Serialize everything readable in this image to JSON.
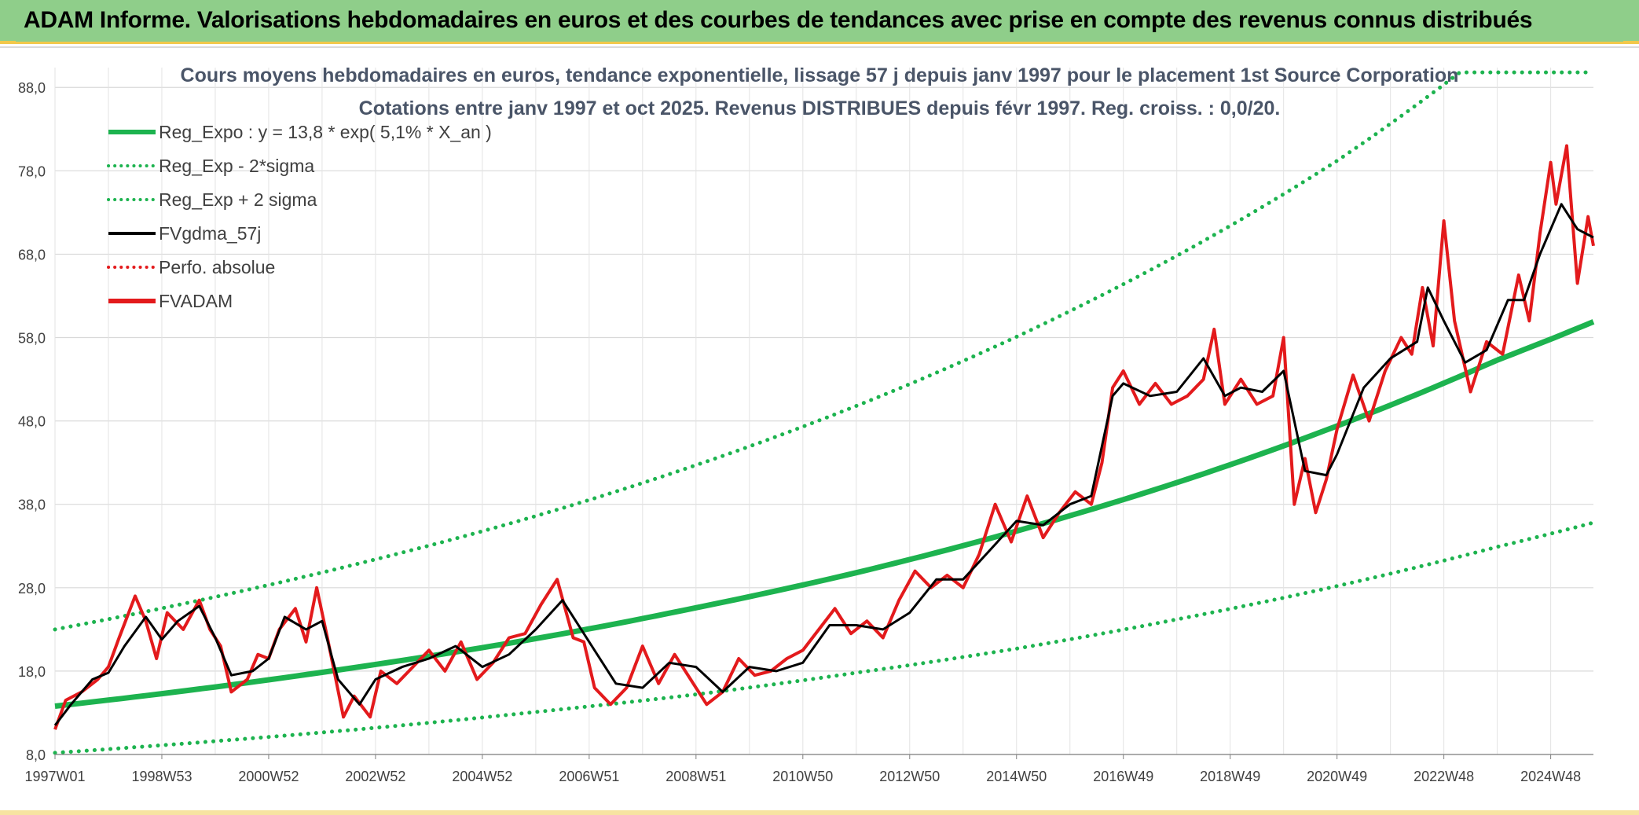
{
  "banner": {
    "title": "ADAM Informe. Valorisations hebdomadaires en euros et des courbes de tendances avec prise en compte des revenus connus distribués"
  },
  "chart_data": {
    "type": "line",
    "title": "Cours moyens hebdomadaires en euros, tendance exponentielle, lissage 57 j depuis janv 1997 pour le placement 1st Source Corporation",
    "subtitle": "Cotations entre janv 1997 et oct 2025. Revenus DISTRIBUES depuis févr 1997. Reg. croiss. : 0,0/20.",
    "xlabel": "",
    "ylabel": "",
    "ylim": [
      8,
      90
    ],
    "y_ticks": [
      "8,0",
      "18,0",
      "28,0",
      "38,0",
      "48,0",
      "58,0",
      "68,0",
      "78,0",
      "88,0"
    ],
    "y_tick_values": [
      8,
      18,
      28,
      38,
      48,
      58,
      68,
      78,
      88
    ],
    "x_range": [
      1997.0,
      2025.8
    ],
    "x_ticks": [
      "1997W01",
      "1998W53",
      "2000W52",
      "2002W52",
      "2004W52",
      "2006W51",
      "2008W51",
      "2010W50",
      "2012W50",
      "2014W50",
      "2016W49",
      "2018W49",
      "2020W49",
      "2022W48",
      "2024W48"
    ],
    "x_tick_years": [
      1997.0,
      1999.0,
      2001.0,
      2003.0,
      2005.0,
      2007.0,
      2009.0,
      2011.0,
      2013.0,
      2015.0,
      2017.0,
      2019.0,
      2021.0,
      2023.0,
      2025.0
    ],
    "grid": true,
    "legend_position": "top-left",
    "legend": [
      {
        "label": "Reg_Expo : y = 13,8 * exp( 5,1% *  X_an )",
        "color": "#1db34f",
        "style": "solid-thick"
      },
      {
        "label": "Reg_Exp - 2*sigma",
        "color": "#1db34f",
        "style": "dotted"
      },
      {
        "label": "Reg_Exp + 2 sigma",
        "color": "#1db34f",
        "style": "dotted"
      },
      {
        "label": "FVgdma_57j",
        "color": "#000000",
        "style": "solid"
      },
      {
        "label": "Perfo. absolue",
        "color": "#e31a1c",
        "style": "dotted"
      },
      {
        "label": "FVADAM",
        "color": "#e31a1c",
        "style": "solid-thick"
      }
    ],
    "series": [
      {
        "name": "Reg_Expo : y = 13,8 * exp( 5,1% *  X_an )",
        "color": "#1db34f",
        "x": [
          1997.0,
          2000.0,
          2003.0,
          2006.0,
          2009.0,
          2012.0,
          2015.0,
          2018.0,
          2021.0,
          2024.0,
          2025.8
        ],
        "values": [
          13.8,
          16.1,
          18.8,
          21.9,
          25.6,
          29.8,
          34.8,
          40.6,
          47.4,
          55.3,
          59.9
        ]
      },
      {
        "name": "Reg_Exp - 2*sigma",
        "color": "#1db34f",
        "x": [
          1997.0,
          2000.0,
          2003.0,
          2006.0,
          2009.0,
          2012.0,
          2015.0,
          2018.0,
          2021.0,
          2024.0,
          2025.8
        ],
        "values": [
          8.2,
          9.6,
          11.2,
          13.1,
          15.2,
          17.8,
          20.7,
          24.2,
          28.2,
          32.9,
          35.8
        ]
      },
      {
        "name": "Reg_Exp + 2 sigma",
        "color": "#1db34f",
        "x": [
          1997.0,
          2000.0,
          2003.0,
          2006.0,
          2009.0,
          2012.0,
          2015.0,
          2018.0,
          2021.0,
          2023.3,
          2025.8
        ],
        "values": [
          23.0,
          26.9,
          31.4,
          36.6,
          42.7,
          49.8,
          58.1,
          67.8,
          79.2,
          89.8,
          89.8
        ]
      },
      {
        "name": "FVgdma_57j",
        "color": "#000000",
        "x": [
          1997.0,
          1997.3,
          1997.7,
          1998.0,
          1998.3,
          1998.7,
          1999.0,
          1999.3,
          1999.7,
          2000.0,
          2000.3,
          2000.7,
          2001.0,
          2001.3,
          2001.7,
          2002.0,
          2002.3,
          2002.7,
          2003.0,
          2003.5,
          2004.0,
          2004.5,
          2005.0,
          2005.5,
          2006.0,
          2006.5,
          2007.0,
          2007.5,
          2008.0,
          2008.5,
          2009.0,
          2009.5,
          2010.0,
          2010.5,
          2011.0,
          2011.5,
          2012.0,
          2012.5,
          2013.0,
          2013.5,
          2014.0,
          2014.5,
          2015.0,
          2015.5,
          2016.0,
          2016.4,
          2016.8,
          2017.0,
          2017.5,
          2018.0,
          2018.5,
          2018.9,
          2019.2,
          2019.6,
          2020.0,
          2020.4,
          2020.8,
          2021.0,
          2021.5,
          2022.0,
          2022.5,
          2022.7,
          2023.0,
          2023.4,
          2023.8,
          2024.2,
          2024.5,
          2024.8,
          2025.2,
          2025.5,
          2025.8
        ],
        "values": [
          11.5,
          14.0,
          17.0,
          17.8,
          21.0,
          24.5,
          21.8,
          24.0,
          25.8,
          22.0,
          17.5,
          18.0,
          19.5,
          24.5,
          23.0,
          24.0,
          17.0,
          14.0,
          17.0,
          18.5,
          19.5,
          21.0,
          18.5,
          20.0,
          23.0,
          26.5,
          21.5,
          16.5,
          16.0,
          19.0,
          18.5,
          15.5,
          18.5,
          18.0,
          19.0,
          23.5,
          23.5,
          23.0,
          25.0,
          29.0,
          29.0,
          32.5,
          36.0,
          35.5,
          38.0,
          39.0,
          51.0,
          52.5,
          51.0,
          51.5,
          55.5,
          51.0,
          52.0,
          51.5,
          54.0,
          42.0,
          41.5,
          44.0,
          52.0,
          55.5,
          57.5,
          64.0,
          60.0,
          55.0,
          56.5,
          62.5,
          62.5,
          68.0,
          74.0,
          71.0,
          70.0
        ]
      },
      {
        "name": "FVADAM",
        "color": "#e31a1c",
        "x": [
          1997.0,
          1997.2,
          1997.5,
          1997.8,
          1998.0,
          1998.2,
          1998.5,
          1998.7,
          1998.9,
          1999.1,
          1999.4,
          1999.7,
          1999.9,
          2000.1,
          2000.3,
          2000.6,
          2000.8,
          2001.0,
          2001.2,
          2001.5,
          2001.7,
          2001.9,
          2002.1,
          2002.4,
          2002.6,
          2002.9,
          2003.1,
          2003.4,
          2003.7,
          2004.0,
          2004.3,
          2004.6,
          2004.9,
          2005.2,
          2005.5,
          2005.8,
          2006.1,
          2006.4,
          2006.7,
          2006.9,
          2007.1,
          2007.4,
          2007.7,
          2008.0,
          2008.3,
          2008.6,
          2008.9,
          2009.2,
          2009.5,
          2009.8,
          2010.1,
          2010.4,
          2010.7,
          2011.0,
          2011.3,
          2011.6,
          2011.9,
          2012.2,
          2012.5,
          2012.8,
          2013.1,
          2013.4,
          2013.7,
          2014.0,
          2014.3,
          2014.6,
          2014.9,
          2015.2,
          2015.5,
          2015.8,
          2016.1,
          2016.4,
          2016.6,
          2016.8,
          2017.0,
          2017.3,
          2017.6,
          2017.9,
          2018.2,
          2018.5,
          2018.7,
          2018.9,
          2019.2,
          2019.5,
          2019.8,
          2020.0,
          2020.2,
          2020.4,
          2020.6,
          2020.8,
          2021.0,
          2021.3,
          2021.6,
          2021.9,
          2022.2,
          2022.4,
          2022.6,
          2022.8,
          2023.0,
          2023.2,
          2023.5,
          2023.8,
          2024.1,
          2024.4,
          2024.6,
          2024.8,
          2025.0,
          2025.1,
          2025.3,
          2025.5,
          2025.7,
          2025.8
        ],
        "values": [
          11.0,
          14.5,
          15.5,
          17.0,
          18.5,
          22.0,
          27.0,
          24.0,
          19.5,
          25.0,
          23.0,
          26.5,
          23.0,
          21.0,
          15.5,
          17.0,
          20.0,
          19.5,
          23.0,
          25.5,
          21.5,
          28.0,
          22.0,
          12.5,
          15.0,
          12.5,
          18.0,
          16.5,
          18.5,
          20.5,
          18.0,
          21.5,
          17.0,
          19.0,
          22.0,
          22.5,
          26.0,
          29.0,
          22.0,
          21.5,
          16.0,
          14.0,
          16.0,
          21.0,
          16.5,
          20.0,
          17.0,
          14.0,
          15.5,
          19.5,
          17.5,
          18.0,
          19.5,
          20.5,
          23.0,
          25.5,
          22.5,
          24.0,
          22.0,
          26.5,
          30.0,
          28.0,
          29.5,
          28.0,
          32.0,
          38.0,
          33.5,
          39.0,
          34.0,
          37.0,
          39.5,
          38.0,
          43.0,
          52.0,
          54.0,
          50.0,
          52.5,
          50.0,
          51.0,
          53.0,
          59.0,
          50.0,
          53.0,
          50.0,
          51.0,
          58.0,
          38.0,
          43.5,
          37.0,
          41.0,
          47.0,
          53.5,
          48.0,
          54.0,
          58.0,
          56.0,
          64.0,
          57.0,
          72.0,
          60.0,
          51.5,
          57.5,
          56.0,
          65.5,
          60.0,
          70.5,
          79.0,
          74.0,
          81.0,
          64.5,
          72.5,
          69.0
        ]
      }
    ]
  }
}
